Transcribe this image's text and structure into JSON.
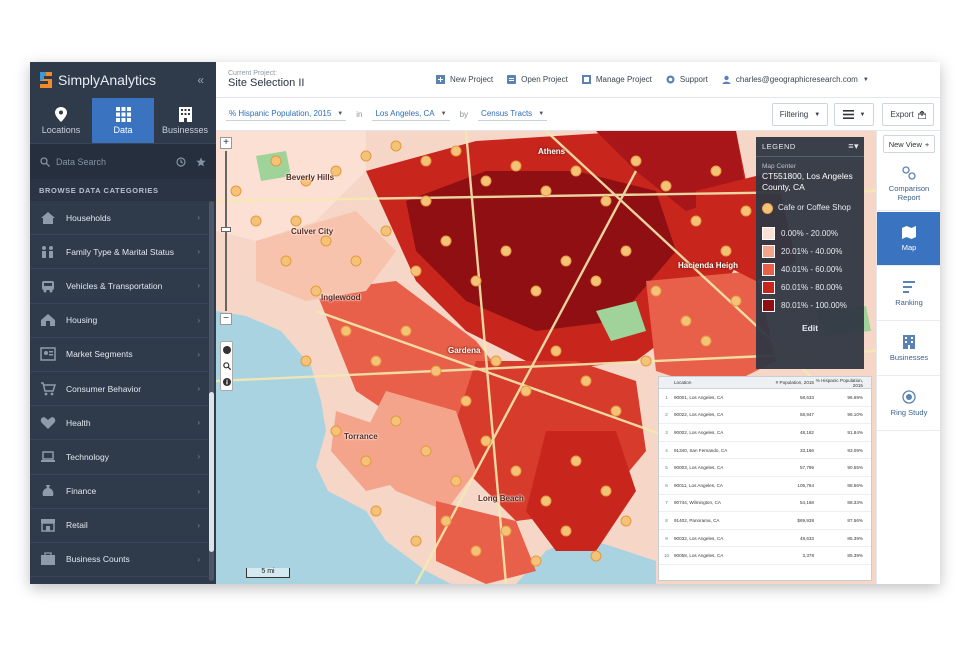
{
  "brand": {
    "name": "SimplyAnalytics",
    "collapse_glyph": "«"
  },
  "modes": [
    {
      "label": "Locations",
      "icon": "map-pin-icon",
      "active": false
    },
    {
      "label": "Data",
      "icon": "grid-icon",
      "active": true
    },
    {
      "label": "Businesses",
      "icon": "building-icon",
      "active": false
    }
  ],
  "search": {
    "placeholder": "Data Search"
  },
  "browse_title": "BROWSE DATA CATEGORIES",
  "categories": [
    {
      "label": "Households",
      "icon": "house-icon"
    },
    {
      "label": "Family Type & Marital Status",
      "icon": "family-icon"
    },
    {
      "label": "Vehicles & Transportation",
      "icon": "car-icon"
    },
    {
      "label": "Housing",
      "icon": "housing-icon"
    },
    {
      "label": "Market Segments",
      "icon": "segments-icon"
    },
    {
      "label": "Consumer Behavior",
      "icon": "cart-icon"
    },
    {
      "label": "Health",
      "icon": "heart-icon"
    },
    {
      "label": "Technology",
      "icon": "laptop-icon"
    },
    {
      "label": "Finance",
      "icon": "money-bag-icon"
    },
    {
      "label": "Retail",
      "icon": "store-icon"
    },
    {
      "label": "Business Counts",
      "icon": "business-icon"
    }
  ],
  "project": {
    "label": "Current Project:",
    "title": "Site Selection II"
  },
  "topbar": {
    "new_project": "New Project",
    "open_project": "Open Project",
    "manage_project": "Manage Project",
    "support": "Support",
    "user": "charles@geographicresearch.com"
  },
  "filterbar": {
    "variable": "% Hispanic Population, 2015",
    "in_label": "in",
    "location": "Los Angeles, CA",
    "by_label": "by",
    "unit": "Census Tracts",
    "filtering": "Filtering",
    "export": "Export"
  },
  "map": {
    "labels": [
      {
        "text": "Beverly Hills"
      },
      {
        "text": "Culver City"
      },
      {
        "text": "Inglewood"
      },
      {
        "text": "Torrance"
      },
      {
        "text": "Long Beach"
      },
      {
        "text": "Hacienda Heigh"
      },
      {
        "text": "Athens"
      },
      {
        "text": "Gardena"
      }
    ],
    "scale": "5 mi"
  },
  "legend": {
    "title": "LEGEND",
    "map_center_label": "Map Center",
    "map_center_value": "CT551800, Los Angeles County, CA",
    "poi_label": "Cafe or Coffee Shop",
    "poi_color": "#f5c27a",
    "breaks": [
      {
        "label": "0.00% - 20.00%",
        "color": "#fbe0d3"
      },
      {
        "label": "20.01% - 40.00%",
        "color": "#f4a48a"
      },
      {
        "label": "40.01% - 60.00%",
        "color": "#e8604a"
      },
      {
        "label": "60.01% - 80.00%",
        "color": "#c8261d"
      },
      {
        "label": "80.01% - 100.00%",
        "color": "#8f0f12"
      }
    ],
    "edit": "Edit"
  },
  "table": {
    "headers": [
      "Location",
      "# Population, 2015",
      "% Hispanic Population, 2015"
    ],
    "rows": [
      [
        "1",
        "90001, Los Angeles, CA",
        "58,633",
        "96.69%"
      ],
      [
        "2",
        "90022, Los Angeles, CA",
        "58,947",
        "96.10%"
      ],
      [
        "3",
        "90002, Los Angeles, CA",
        "48,182",
        "91.84%"
      ],
      [
        "4",
        "91340, San Fernando, CA",
        "33,166",
        "93.09%"
      ],
      [
        "5",
        "90003, Los Angeles, CA",
        "57,799",
        "90.55%"
      ],
      [
        "6",
        "90011, Los Angeles, CA",
        "105,784",
        "88.56%"
      ],
      [
        "7",
        "90744, Wilmington, CA",
        "54,168",
        "88.33%"
      ],
      [
        "8",
        "91402, Panorama, CA",
        "$69,938",
        "87.56%"
      ],
      [
        "9",
        "90032, Los Angeles, CA",
        "48,633",
        "85.39%"
      ],
      [
        "10",
        "90058, Los Angeles, CA",
        "3,378",
        "85.39%"
      ]
    ]
  },
  "right_panel": {
    "new_view": "New View",
    "items": [
      {
        "label": "Comparison Report",
        "icon": "comparison-icon",
        "active": false
      },
      {
        "label": "Map",
        "icon": "map-icon",
        "active": true
      },
      {
        "label": "Ranking",
        "icon": "ranking-icon",
        "active": false
      },
      {
        "label": "Businesses",
        "icon": "businesses-icon",
        "active": false
      },
      {
        "label": "Ring Study",
        "icon": "ring-icon",
        "active": false
      }
    ]
  },
  "colors": {
    "accent": "#3a74c0",
    "sidebar": "#2f3a4b"
  }
}
